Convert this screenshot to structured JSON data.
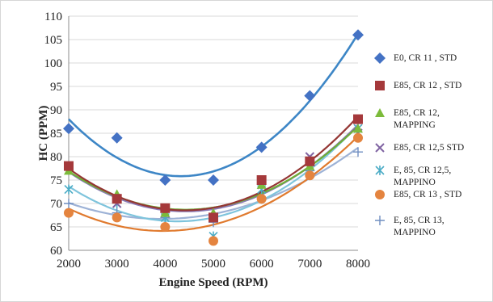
{
  "chart_data": {
    "type": "scatter",
    "title": "",
    "xlabel": "Engine Speed (RPM)",
    "ylabel": "HC (PPM)",
    "xlim": [
      2000,
      8000
    ],
    "ylim": [
      60,
      110
    ],
    "xticks": [
      "2000",
      "3000",
      "4000",
      "5000",
      "6000",
      "7000",
      "8000"
    ],
    "yticks": [
      "60",
      "65",
      "70",
      "75",
      "80",
      "85",
      "90",
      "95",
      "100",
      "105",
      "110"
    ],
    "grid": "horizontal",
    "legend_position": "right",
    "trendline": "polynomial",
    "x": [
      2000,
      3000,
      4000,
      5000,
      6000,
      7000,
      8000
    ],
    "series": [
      {
        "name": "E0, CR 11 , STD",
        "marker": "diamond",
        "color": "#4472C4",
        "line_color": "#3d86c6",
        "values": [
          86,
          84,
          75,
          75,
          82,
          93,
          106
        ]
      },
      {
        "name": "E85, CR 12 , STD",
        "marker": "square",
        "color": "#A5393B",
        "line_color": "#943634",
        "values": [
          78,
          71,
          69,
          67,
          75,
          79,
          88
        ]
      },
      {
        "name": "E85, CR 12, MAPPING",
        "marker": "triangle",
        "color": "#7CBB3B",
        "line_color": "#6fae34",
        "values": [
          77,
          72,
          68,
          68,
          74,
          78,
          86
        ]
      },
      {
        "name": "E85, CR 12,5  STD",
        "marker": "x",
        "color": "#8064A2",
        "line_color": "#8a79b6",
        "values": [
          78,
          70,
          68,
          67,
          74,
          80,
          85
        ]
      },
      {
        "name": "E, 85,  CR 12,5, MAPPINO",
        "marker": "star",
        "color": "#4BACC6",
        "line_color": "#7ec4dc",
        "values": [
          73,
          70,
          67,
          63,
          73,
          78,
          86
        ]
      },
      {
        "name": "E85, CR 13 , STD",
        "marker": "circle",
        "color": "#E4843F",
        "line_color": "#e07a2e",
        "values": [
          68,
          67,
          65,
          62,
          71,
          76,
          84
        ]
      },
      {
        "name": "E, 85, CR 13, MAPPINO",
        "marker": "plus",
        "color": "#6F8DC0",
        "line_color": "#9db2d6",
        "values": [
          70,
          68,
          67,
          66,
          71,
          77,
          81
        ]
      }
    ]
  }
}
